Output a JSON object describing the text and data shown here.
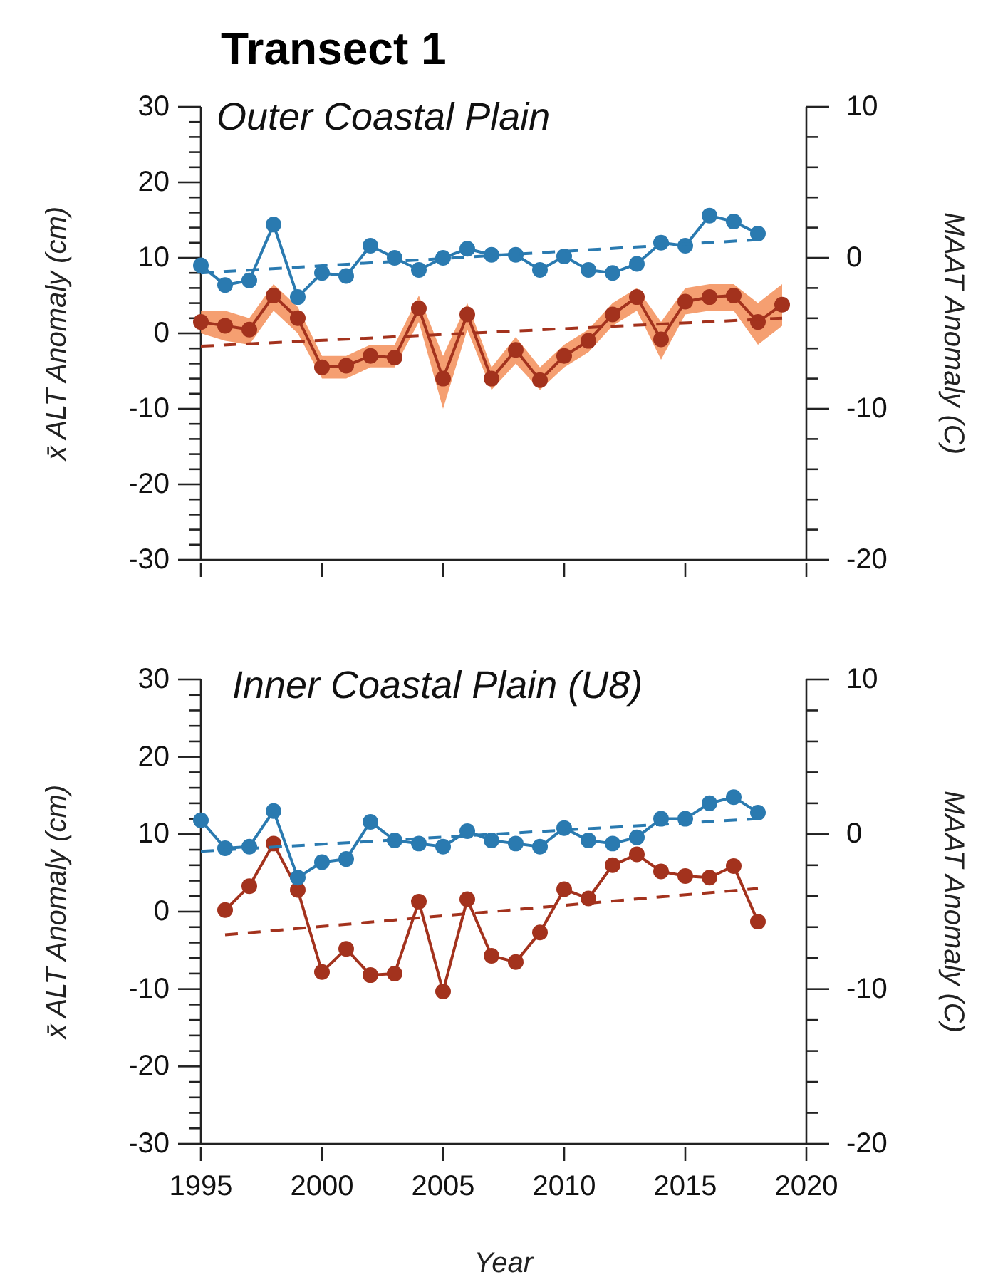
{
  "chart_data": [
    {
      "type": "line",
      "title": "Transect 1",
      "subtitle": "Outer Coastal Plain",
      "ylabel": "x̄ ALT Anomaly (cm)",
      "y2label": "MAAT Anomaly (C)",
      "xlim": [
        1995,
        2020
      ],
      "xticks": [
        1995,
        2000,
        2005,
        2010,
        2015,
        2020
      ],
      "tick_labels": "y",
      "marker": "circle",
      "ylim": [
        -30,
        30
      ],
      "yticks": [
        -30,
        {
          "value": -28,
          "label": null
        },
        {
          "value": -26,
          "label": null
        },
        {
          "value": -24,
          "label": null
        },
        {
          "value": -22,
          "label": null
        },
        -20,
        {
          "value": -18,
          "label": null
        },
        {
          "value": -16,
          "label": null
        },
        {
          "value": -14,
          "label": null
        },
        {
          "value": -12,
          "label": null
        },
        -10,
        {
          "value": -8,
          "label": null
        },
        {
          "value": -6,
          "label": null
        },
        {
          "value": -4,
          "label": null
        },
        {
          "value": -2,
          "label": null
        },
        0,
        {
          "value": 2,
          "label": null
        },
        {
          "value": 4,
          "label": null
        },
        {
          "value": 6,
          "label": null
        },
        {
          "value": 8,
          "label": null
        },
        10,
        {
          "value": 12,
          "label": null
        },
        {
          "value": 14,
          "label": null
        },
        {
          "value": 16,
          "label": null
        },
        {
          "value": 18,
          "label": null
        },
        20,
        {
          "value": 22,
          "label": null
        },
        {
          "value": 24,
          "label": null
        },
        {
          "value": 26,
          "label": null
        },
        {
          "value": 28,
          "label": null
        },
        30
      ],
      "y2lim": [
        -20,
        10
      ],
      "y2ticks": [
        -20,
        {
          "value": -18,
          "label": null
        },
        {
          "value": -16,
          "label": null
        },
        {
          "value": -14,
          "label": null
        },
        {
          "value": -12,
          "label": null
        },
        -10,
        {
          "value": -8,
          "label": null
        },
        {
          "value": -6,
          "label": null
        },
        {
          "value": -4,
          "label": null
        },
        {
          "value": -2,
          "label": null
        },
        0,
        {
          "value": 2,
          "label": null
        },
        {
          "value": 4,
          "label": null
        },
        {
          "value": 6,
          "label": null
        },
        {
          "value": 8,
          "label": null
        },
        10
      ],
      "series": [
        {
          "color": "#a3321d",
          "x": [
            1995,
            1996,
            1997,
            1998,
            1999,
            2000,
            2001,
            2002,
            2003,
            2004,
            2005,
            2006,
            2007,
            2008,
            2009,
            2010,
            2011,
            2012,
            2013,
            2014,
            2015,
            2016,
            2017,
            2018,
            2019
          ],
          "values": [
            1.5,
            1,
            0.5,
            5,
            2,
            -4.5,
            -4.3,
            -3,
            -3.2,
            3.3,
            -6,
            2.5,
            -6,
            -2.2,
            -6.2,
            -3,
            -1,
            2.5,
            4.8,
            -0.8,
            4.2,
            4.8,
            5,
            1.5,
            3.8
          ],
          "lower": [
            0,
            -1,
            -1.5,
            3,
            0,
            -6,
            -6,
            -4.5,
            -4.5,
            1.5,
            -10,
            0.5,
            -7.5,
            -4,
            -7.5,
            -4.5,
            -2.5,
            1,
            3,
            -3.5,
            2.5,
            3,
            3,
            -1.5,
            1
          ],
          "upper": [
            3,
            3,
            2,
            6.5,
            3.5,
            -3,
            -3,
            -1.5,
            -1.5,
            5,
            -3,
            4,
            -4.5,
            -0.5,
            -4.5,
            -1.5,
            0.5,
            4,
            6,
            1.5,
            6,
            6.5,
            6.5,
            4,
            6.5
          ]
        },
        {
          "color": "#a3321d",
          "line_style": "dashed",
          "marker": "none",
          "x": [
            1995,
            2019
          ],
          "values": [
            -1.7,
            2
          ]
        },
        {
          "color": "#2a7ab0",
          "axis": "y2",
          "x": [
            1995,
            1996,
            1997,
            1998,
            1999,
            2000,
            2001,
            2002,
            2003,
            2004,
            2005,
            2006,
            2007,
            2008,
            2009,
            2010,
            2011,
            2012,
            2013,
            2014,
            2015,
            2016,
            2017,
            2018
          ],
          "values": [
            -0.5,
            -1.8,
            -1.5,
            2.2,
            -2.6,
            -1,
            -1.2,
            0.8,
            0,
            -0.8,
            0,
            0.6,
            0.2,
            0.2,
            -0.8,
            0.1,
            -0.8,
            -1,
            -0.4,
            1,
            0.8,
            2.8,
            2.4,
            1.6
          ]
        },
        {
          "color": "#2a7ab0",
          "axis": "y2",
          "line_style": "dashed",
          "marker": "none",
          "x": [
            1995,
            2018
          ],
          "values": [
            -1,
            1.2
          ]
        }
      ]
    },
    {
      "type": "line",
      "title": "Inner Coastal Plain (U8)",
      "xlabel": "Year",
      "ylabel": "x̄ ALT Anomaly (cm)",
      "y2label": "MAAT Anomaly (C)",
      "xlim": [
        1995,
        2020
      ],
      "xticks": [
        1995,
        2000,
        2005,
        2010,
        2015,
        2020
      ],
      "marker": "circle",
      "ylim": [
        -30,
        30
      ],
      "yticks": [
        -30,
        {
          "value": -28,
          "label": null
        },
        {
          "value": -26,
          "label": null
        },
        {
          "value": -24,
          "label": null
        },
        {
          "value": -22,
          "label": null
        },
        -20,
        {
          "value": -18,
          "label": null
        },
        {
          "value": -16,
          "label": null
        },
        {
          "value": -14,
          "label": null
        },
        {
          "value": -12,
          "label": null
        },
        -10,
        {
          "value": -8,
          "label": null
        },
        {
          "value": -6,
          "label": null
        },
        {
          "value": -4,
          "label": null
        },
        {
          "value": -2,
          "label": null
        },
        0,
        {
          "value": 2,
          "label": null
        },
        {
          "value": 4,
          "label": null
        },
        {
          "value": 6,
          "label": null
        },
        {
          "value": 8,
          "label": null
        },
        10,
        {
          "value": 12,
          "label": null
        },
        {
          "value": 14,
          "label": null
        },
        {
          "value": 16,
          "label": null
        },
        {
          "value": 18,
          "label": null
        },
        20,
        {
          "value": 22,
          "label": null
        },
        {
          "value": 24,
          "label": null
        },
        {
          "value": 26,
          "label": null
        },
        {
          "value": 28,
          "label": null
        },
        30
      ],
      "y2lim": [
        -20,
        10
      ],
      "y2ticks": [
        -20,
        {
          "value": -18,
          "label": null
        },
        {
          "value": -16,
          "label": null
        },
        {
          "value": -14,
          "label": null
        },
        {
          "value": -12,
          "label": null
        },
        -10,
        {
          "value": -8,
          "label": null
        },
        {
          "value": -6,
          "label": null
        },
        {
          "value": -4,
          "label": null
        },
        {
          "value": -2,
          "label": null
        },
        0,
        {
          "value": 2,
          "label": null
        },
        {
          "value": 4,
          "label": null
        },
        {
          "value": 6,
          "label": null
        },
        {
          "value": 8,
          "label": null
        },
        10
      ],
      "series": [
        {
          "color": "#a3321d",
          "x": [
            1996,
            1997,
            1998,
            1999,
            2000,
            2001,
            2002,
            2003,
            2004,
            2005,
            2006,
            2007,
            2008,
            2009,
            2010,
            2011,
            2012,
            2013,
            2014,
            2015,
            2016,
            2017,
            2018
          ],
          "values": [
            0.2,
            3.3,
            8.8,
            2.8,
            -7.8,
            -4.8,
            -8.2,
            -8,
            1.3,
            -10.3,
            1.6,
            -5.7,
            -6.5,
            -2.7,
            2.9,
            1.7,
            6,
            7.4,
            5.2,
            4.6,
            4.4,
            5.9,
            -1.3
          ]
        },
        {
          "color": "#a3321d",
          "line_style": "dashed",
          "marker": "none",
          "x": [
            1996,
            2018
          ],
          "values": [
            -3,
            3
          ]
        },
        {
          "color": "#2a7ab0",
          "axis": "y2",
          "x": [
            1995,
            1996,
            1997,
            1998,
            1999,
            2000,
            2001,
            2002,
            2003,
            2004,
            2005,
            2006,
            2007,
            2008,
            2009,
            2010,
            2011,
            2012,
            2013,
            2014,
            2015,
            2016,
            2017,
            2018
          ],
          "values": [
            0.9,
            -0.9,
            -0.8,
            1.5,
            -2.8,
            -1.8,
            -1.6,
            0.8,
            -0.4,
            -0.6,
            -0.8,
            0.2,
            -0.4,
            -0.6,
            -0.8,
            0.4,
            -0.4,
            -0.6,
            -0.2,
            1,
            1,
            2,
            2.4,
            1.4
          ]
        },
        {
          "color": "#2a7ab0",
          "axis": "y2",
          "line_style": "dashed",
          "marker": "none",
          "x": [
            1995,
            2018
          ],
          "values": [
            -1.1,
            1
          ]
        }
      ]
    }
  ]
}
